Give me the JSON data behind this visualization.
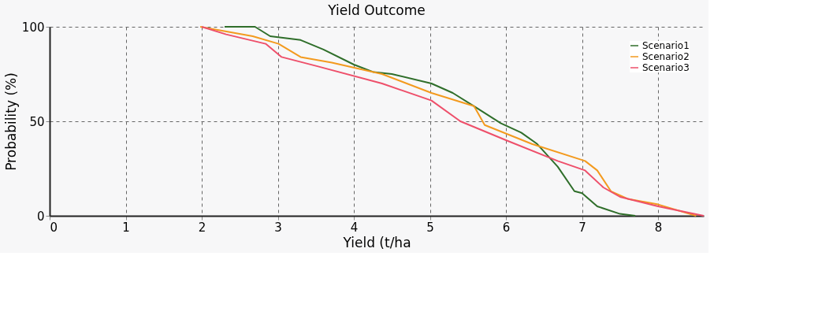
{
  "chart_data": {
    "type": "line",
    "title": "Yield Outcome",
    "xlabel": "Yield (t/ha",
    "ylabel": "Probability (%)",
    "xlim": [
      0,
      8.6
    ],
    "xticks": [
      0,
      1,
      2,
      3,
      4,
      5,
      6,
      7,
      8
    ],
    "ylim": [
      0,
      100
    ],
    "yticks": [
      0,
      50,
      100
    ],
    "grid": true,
    "legend": "top right",
    "line_style": "solid",
    "marker": "none",
    "series": [
      {
        "name": "Scenario1",
        "color": "#2f6e2a",
        "x": [
          2.3,
          2.7,
          2.9,
          3.3,
          3.6,
          4.0,
          4.26,
          4.5,
          5.02,
          5.3,
          5.58,
          5.93,
          6.2,
          6.41,
          6.68,
          6.9,
          7.0,
          7.2,
          7.5,
          7.7
        ],
        "values": [
          100,
          100,
          95,
          93,
          88,
          80,
          76,
          75,
          70,
          65,
          58,
          49,
          44,
          38,
          26,
          13,
          12,
          5,
          1,
          0
        ]
      },
      {
        "name": "Scenario2",
        "color": "#f39a1e",
        "x": [
          1.98,
          2.67,
          3.01,
          3.3,
          3.71,
          4.37,
          5.02,
          5.58,
          5.72,
          6.34,
          7.04,
          7.2,
          7.38,
          7.6,
          8.0,
          8.5
        ],
        "values": [
          100,
          95,
          91,
          84,
          81,
          75,
          65,
          58,
          48,
          38,
          29,
          24,
          13,
          9,
          6,
          0
        ]
      },
      {
        "name": "Scenario3",
        "color": "#ee4f6a",
        "x": [
          2.0,
          2.32,
          2.84,
          3.05,
          3.53,
          4.37,
          5.02,
          5.4,
          6.0,
          6.68,
          7.04,
          7.28,
          7.5,
          8.0,
          8.6
        ],
        "values": [
          100,
          96,
          91,
          84,
          79,
          70,
          61,
          50,
          40,
          29,
          24,
          15,
          10,
          5,
          0
        ]
      }
    ]
  }
}
